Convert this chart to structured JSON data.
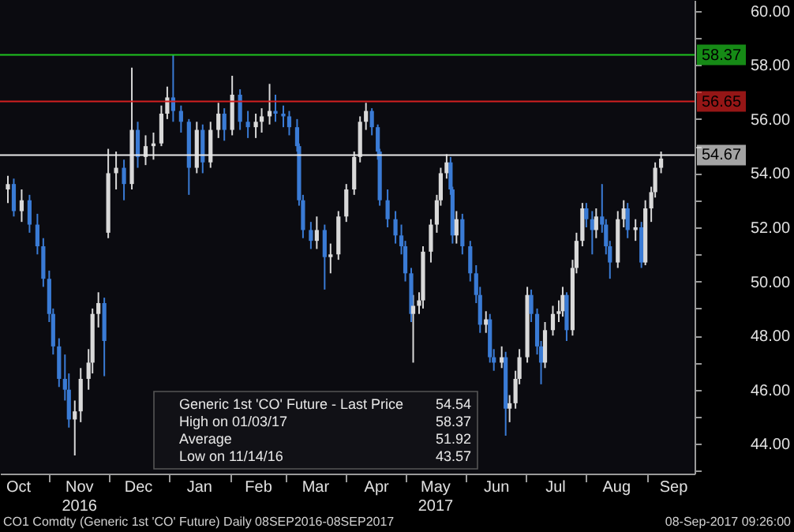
{
  "chart_data": {
    "type": "candlestick",
    "x": [
      "2016-10-11",
      "2016-10-14",
      "2016-10-18",
      "2016-10-22",
      "2016-10-26",
      "2016-10-29",
      "2016-11-01",
      "2016-11-03",
      "2016-11-06",
      "2016-11-09",
      "2016-11-11",
      "2016-11-14",
      "2016-11-17",
      "2016-11-21",
      "2016-11-23",
      "2016-11-26",
      "2016-11-29",
      "2016-12-01",
      "2016-12-05",
      "2016-12-09",
      "2016-12-13",
      "2016-12-16",
      "2016-12-20",
      "2016-12-24",
      "2016-12-28",
      "2016-12-31",
      "2017-01-03",
      "2017-01-07",
      "2017-01-11",
      "2017-01-15",
      "2017-01-18",
      "2017-01-22",
      "2017-01-26",
      "2017-01-29",
      "2017-02-02",
      "2017-02-06",
      "2017-02-10",
      "2017-02-14",
      "2017-02-17",
      "2017-02-21",
      "2017-02-24",
      "2017-02-28",
      "2017-03-03",
      "2017-03-07",
      "2017-03-08",
      "2017-03-10",
      "2017-03-14",
      "2017-03-17",
      "2017-03-21",
      "2017-03-24",
      "2017-03-28",
      "2017-04-01",
      "2017-04-05",
      "2017-04-08",
      "2017-04-11",
      "2017-04-14",
      "2017-04-17",
      "2017-04-18",
      "2017-04-22",
      "2017-04-26",
      "2017-04-29",
      "2017-05-01",
      "2017-05-04",
      "2017-05-05",
      "2017-05-08",
      "2017-05-10",
      "2017-05-14",
      "2017-05-17",
      "2017-05-19",
      "2017-05-22",
      "2017-05-24",
      "2017-05-25",
      "2017-05-27",
      "2017-05-30",
      "2017-06-03",
      "2017-06-06",
      "2017-06-08",
      "2017-06-11",
      "2017-06-13",
      "2017-06-15",
      "2017-06-19",
      "2017-06-21",
      "2017-06-23",
      "2017-06-26",
      "2017-06-28",
      "2017-07-02",
      "2017-07-04",
      "2017-07-07",
      "2017-07-09",
      "2017-07-11",
      "2017-07-15",
      "2017-07-18",
      "2017-07-20",
      "2017-07-22",
      "2017-07-25",
      "2017-07-27",
      "2017-07-30",
      "2017-08-01",
      "2017-08-04",
      "2017-08-06",
      "2017-08-09",
      "2017-08-11",
      "2017-08-13",
      "2017-08-17",
      "2017-08-20",
      "2017-08-22",
      "2017-08-26",
      "2017-08-29",
      "2017-08-31",
      "2017-09-03",
      "2017-09-05",
      "2017-09-08"
    ],
    "ohlc": [
      [
        53.4,
        53.9,
        52.9,
        53.6
      ],
      [
        53.6,
        53.8,
        52.4,
        52.6
      ],
      [
        52.6,
        53.4,
        52.2,
        53.0
      ],
      [
        53.0,
        53.2,
        51.8,
        52.1
      ],
      [
        52.1,
        52.5,
        51.0,
        51.3
      ],
      [
        51.3,
        51.6,
        49.8,
        50.1
      ],
      [
        50.1,
        50.4,
        48.5,
        48.8
      ],
      [
        48.8,
        49.0,
        47.3,
        47.6
      ],
      [
        47.6,
        47.9,
        46.1,
        46.4
      ],
      [
        46.4,
        47.3,
        45.6,
        46.0
      ],
      [
        46.0,
        46.6,
        44.6,
        44.9
      ],
      [
        44.9,
        45.6,
        43.57,
        45.2
      ],
      [
        45.2,
        46.8,
        44.8,
        46.4
      ],
      [
        46.4,
        47.5,
        46.0,
        47.0
      ],
      [
        47.0,
        49.0,
        46.6,
        48.8
      ],
      [
        48.8,
        49.6,
        48.3,
        49.2
      ],
      [
        49.2,
        49.4,
        46.5,
        47.8
      ],
      [
        51.8,
        54.9,
        51.6,
        54.0
      ],
      [
        54.0,
        54.8,
        53.4,
        54.2
      ],
      [
        54.2,
        54.5,
        53.0,
        53.6
      ],
      [
        53.6,
        57.9,
        53.4,
        55.6
      ],
      [
        55.6,
        55.9,
        54.2,
        54.6
      ],
      [
        54.6,
        55.4,
        54.3,
        55.0
      ],
      [
        55.0,
        55.5,
        54.5,
        55.1
      ],
      [
        55.1,
        56.5,
        55.0,
        56.2
      ],
      [
        56.2,
        57.2,
        56.0,
        56.8
      ],
      [
        56.8,
        58.37,
        55.9,
        56.3
      ],
      [
        56.3,
        56.5,
        55.5,
        55.9
      ],
      [
        55.9,
        56.0,
        53.2,
        54.2
      ],
      [
        54.2,
        55.9,
        54.0,
        55.6
      ],
      [
        55.6,
        55.8,
        54.0,
        54.4
      ],
      [
        54.4,
        55.9,
        54.2,
        55.6
      ],
      [
        55.6,
        56.6,
        55.3,
        56.2
      ],
      [
        56.2,
        56.4,
        55.2,
        55.6
      ],
      [
        55.6,
        57.6,
        55.4,
        56.9
      ],
      [
        56.9,
        57.1,
        55.6,
        55.9
      ],
      [
        55.9,
        56.3,
        55.3,
        55.7
      ],
      [
        55.7,
        56.2,
        55.3,
        55.9
      ],
      [
        55.9,
        56.4,
        55.5,
        56.1
      ],
      [
        56.1,
        57.3,
        55.8,
        56.3
      ],
      [
        56.3,
        56.9,
        55.9,
        56.2
      ],
      [
        56.2,
        56.5,
        55.7,
        56.1
      ],
      [
        56.1,
        56.3,
        55.4,
        55.7
      ],
      [
        55.7,
        56.0,
        54.8,
        55.0
      ],
      [
        55.0,
        55.1,
        52.8,
        53.0
      ],
      [
        53.0,
        53.2,
        51.6,
        51.9
      ],
      [
        51.9,
        52.2,
        51.2,
        51.5
      ],
      [
        51.5,
        52.4,
        51.2,
        51.9
      ],
      [
        51.9,
        52.1,
        49.7,
        50.9
      ],
      [
        50.9,
        51.4,
        50.3,
        51.0
      ],
      [
        51.0,
        52.6,
        50.8,
        52.4
      ],
      [
        52.4,
        53.6,
        52.2,
        53.4
      ],
      [
        53.4,
        54.8,
        53.2,
        54.6
      ],
      [
        54.6,
        56.1,
        54.4,
        55.9
      ],
      [
        55.9,
        56.6,
        55.6,
        56.3
      ],
      [
        56.3,
        56.4,
        55.4,
        55.7
      ],
      [
        55.7,
        55.8,
        54.5,
        54.8
      ],
      [
        54.8,
        54.9,
        52.8,
        53.0
      ],
      [
        53.0,
        53.4,
        52.0,
        52.3
      ],
      [
        52.3,
        52.6,
        51.4,
        51.7
      ],
      [
        51.7,
        52.1,
        51.0,
        51.3
      ],
      [
        51.3,
        51.5,
        50.0,
        50.3
      ],
      [
        50.3,
        50.5,
        48.5,
        48.8
      ],
      [
        48.8,
        49.5,
        47.0,
        49.1
      ],
      [
        49.1,
        49.6,
        48.8,
        49.3
      ],
      [
        49.3,
        51.3,
        49.0,
        51.1
      ],
      [
        51.1,
        52.3,
        50.7,
        52.1
      ],
      [
        52.1,
        53.2,
        51.8,
        53.0
      ],
      [
        53.0,
        54.2,
        52.8,
        54.0
      ],
      [
        54.0,
        54.7,
        53.8,
        54.4
      ],
      [
        54.4,
        54.6,
        53.2,
        53.4
      ],
      [
        53.4,
        53.5,
        51.4,
        51.7
      ],
      [
        51.7,
        52.6,
        51.4,
        52.3
      ],
      [
        52.3,
        52.5,
        51.0,
        51.3
      ],
      [
        51.3,
        51.5,
        50.0,
        50.3
      ],
      [
        50.3,
        50.6,
        49.2,
        49.5
      ],
      [
        49.5,
        49.8,
        48.1,
        48.4
      ],
      [
        48.4,
        48.9,
        48.1,
        48.6
      ],
      [
        48.6,
        48.8,
        47.0,
        47.2
      ],
      [
        47.2,
        47.5,
        46.7,
        47.0
      ],
      [
        47.0,
        47.6,
        46.8,
        47.2
      ],
      [
        47.2,
        47.4,
        44.3,
        45.3
      ],
      [
        45.3,
        45.8,
        44.8,
        45.5
      ],
      [
        45.5,
        46.7,
        45.3,
        46.4
      ],
      [
        46.4,
        47.5,
        46.2,
        47.2
      ],
      [
        47.2,
        49.8,
        47.0,
        49.5
      ],
      [
        49.5,
        49.7,
        48.5,
        48.8
      ],
      [
        48.8,
        49.0,
        47.3,
        47.6
      ],
      [
        47.6,
        47.8,
        46.2,
        47.0
      ],
      [
        47.0,
        48.5,
        46.8,
        48.2
      ],
      [
        48.2,
        49.1,
        48.0,
        48.8
      ],
      [
        48.8,
        49.3,
        48.5,
        48.9
      ],
      [
        48.9,
        49.8,
        48.7,
        49.5
      ],
      [
        49.5,
        49.6,
        47.8,
        48.2
      ],
      [
        48.2,
        50.8,
        48.0,
        50.5
      ],
      [
        50.5,
        51.8,
        50.3,
        51.5
      ],
      [
        51.5,
        52.9,
        51.3,
        52.7
      ],
      [
        52.7,
        52.9,
        52.0,
        52.3
      ],
      [
        52.3,
        52.6,
        51.0,
        51.9
      ],
      [
        51.9,
        52.7,
        51.6,
        52.4
      ],
      [
        52.4,
        53.6,
        51.8,
        52.1
      ],
      [
        52.1,
        52.3,
        51.0,
        51.3
      ],
      [
        51.3,
        51.5,
        50.1,
        50.7
      ],
      [
        50.7,
        52.6,
        50.5,
        52.3
      ],
      [
        52.3,
        53.0,
        52.0,
        52.7
      ],
      [
        52.7,
        52.9,
        51.6,
        51.9
      ],
      [
        51.9,
        52.3,
        51.5,
        52.0
      ],
      [
        52.0,
        52.2,
        50.5,
        50.7
      ],
      [
        50.7,
        53.0,
        50.6,
        52.7
      ],
      [
        52.7,
        53.5,
        52.2,
        53.3
      ],
      [
        53.3,
        54.4,
        53.1,
        54.2
      ],
      [
        54.2,
        54.8,
        54.0,
        54.54
      ]
    ],
    "colors": [
      "#d9d9d9",
      "#3a7bd5",
      "#d9d9d9",
      "#3a7bd5",
      "#3a7bd5",
      "#3a7bd5",
      "#3a7bd5",
      "#3a7bd5",
      "#3a7bd5",
      "#3a7bd5",
      "#3a7bd5",
      "#d9d9d9",
      "#d9d9d9",
      "#d9d9d9",
      "#d9d9d9",
      "#d9d9d9",
      "#3a7bd5",
      "#d9d9d9",
      "#d9d9d9",
      "#3a7bd5",
      "#d9d9d9",
      "#3a7bd5",
      "#d9d9d9",
      "#d9d9d9",
      "#d9d9d9",
      "#d9d9d9",
      "#3a7bd5",
      "#3a7bd5",
      "#3a7bd5",
      "#d9d9d9",
      "#3a7bd5",
      "#d9d9d9",
      "#d9d9d9",
      "#3a7bd5",
      "#d9d9d9",
      "#3a7bd5",
      "#3a7bd5",
      "#d9d9d9",
      "#d9d9d9",
      "#d9d9d9",
      "#3a7bd5",
      "#3a7bd5",
      "#3a7bd5",
      "#3a7bd5",
      "#3a7bd5",
      "#3a7bd5",
      "#3a7bd5",
      "#d9d9d9",
      "#3a7bd5",
      "#d9d9d9",
      "#d9d9d9",
      "#d9d9d9",
      "#d9d9d9",
      "#d9d9d9",
      "#d9d9d9",
      "#3a7bd5",
      "#3a7bd5",
      "#3a7bd5",
      "#3a7bd5",
      "#3a7bd5",
      "#3a7bd5",
      "#3a7bd5",
      "#3a7bd5",
      "#d9d9d9",
      "#d9d9d9",
      "#d9d9d9",
      "#d9d9d9",
      "#d9d9d9",
      "#d9d9d9",
      "#d9d9d9",
      "#3a7bd5",
      "#3a7bd5",
      "#d9d9d9",
      "#3a7bd5",
      "#3a7bd5",
      "#3a7bd5",
      "#3a7bd5",
      "#d9d9d9",
      "#3a7bd5",
      "#3a7bd5",
      "#d9d9d9",
      "#3a7bd5",
      "#d9d9d9",
      "#d9d9d9",
      "#d9d9d9",
      "#d9d9d9",
      "#3a7bd5",
      "#3a7bd5",
      "#3a7bd5",
      "#d9d9d9",
      "#d9d9d9",
      "#d9d9d9",
      "#d9d9d9",
      "#3a7bd5",
      "#d9d9d9",
      "#d9d9d9",
      "#d9d9d9",
      "#3a7bd5",
      "#3a7bd5",
      "#d9d9d9",
      "#3a7bd5",
      "#3a7bd5",
      "#3a7bd5",
      "#d9d9d9",
      "#d9d9d9",
      "#3a7bd5",
      "#d9d9d9",
      "#3a7bd5",
      "#d9d9d9",
      "#d9d9d9",
      "#d9d9d9",
      "#d9d9d9"
    ],
    "xlim": [
      "2016-10-11",
      "2017-09-21"
    ],
    "xticks": [
      {
        "value": "2016-11-01",
        "label": null
      },
      {
        "value": "2016-12-01",
        "label": null
      },
      {
        "value": "2017-01-01",
        "label": null
      },
      {
        "value": "2017-02-01",
        "label": null
      },
      {
        "value": "2017-03-01",
        "label": null
      },
      {
        "value": "2017-04-01",
        "label": null
      },
      {
        "value": "2017-05-01",
        "label": null
      },
      {
        "value": "2017-06-01",
        "label": null
      },
      {
        "value": "2017-07-01",
        "label": null
      },
      {
        "value": "2017-08-01",
        "label": null
      },
      {
        "value": "2017-09-01",
        "label": null
      },
      {
        "value": "2016-10-16",
        "label": "Oct"
      },
      {
        "value": "2016-11-16",
        "label": "Nov\n2016"
      },
      {
        "value": "2016-12-16",
        "label": "Dec"
      },
      {
        "value": "2017-01-16",
        "label": "Jan"
      },
      {
        "value": "2017-02-15",
        "label": "Feb"
      },
      {
        "value": "2017-03-16",
        "label": "Mar"
      },
      {
        "value": "2017-04-16",
        "label": "Apr"
      },
      {
        "value": "2017-05-16",
        "label": "May\n2017"
      },
      {
        "value": "2017-06-16",
        "label": "Jun"
      },
      {
        "value": "2017-07-16",
        "label": "Jul"
      },
      {
        "value": "2017-08-16",
        "label": "Aug"
      },
      {
        "value": "2017-09-14",
        "label": "Sep"
      }
    ],
    "ylim": [
      42.9,
      60.4
    ],
    "yticks": [
      {
        "value": 44,
        "label": "44.00"
      },
      {
        "value": 46,
        "label": "46.00"
      },
      {
        "value": 48,
        "label": "48.00"
      },
      {
        "value": 50,
        "label": "50.00"
      },
      {
        "value": 52,
        "label": "52.00"
      },
      {
        "value": 54,
        "label": "54.00"
      },
      {
        "value": 56,
        "label": "56.00"
      },
      {
        "value": 58,
        "label": "58.00"
      },
      {
        "value": 60,
        "label": "60.00"
      },
      {
        "value": 43,
        "label": null
      },
      {
        "value": 45,
        "label": null
      },
      {
        "value": 47,
        "label": null
      },
      {
        "value": 49,
        "label": null
      },
      {
        "value": 51,
        "label": null
      },
      {
        "value": 53,
        "label": null
      },
      {
        "value": 55,
        "label": null
      },
      {
        "value": 57,
        "label": null
      },
      {
        "value": 59,
        "label": null
      }
    ],
    "ref_lines": [
      {
        "axis": "y",
        "value": 58.37,
        "label": "58.37",
        "color": "#1fc41f"
      },
      {
        "axis": "y",
        "value": 56.65,
        "label": "56.65",
        "color": "#d42020"
      },
      {
        "axis": "y",
        "value": 54.67,
        "label": "54.67",
        "color": "#e8e8e8"
      }
    ],
    "grid": false,
    "annotations": [
      "Generic 1st 'CO' Future - Last Price",
      "54.54",
      "High on 01/03/17",
      "58.37",
      "Average",
      "51.92",
      "Low on 11/14/16",
      "43.57",
      "CO1 Comdty (Generic 1st 'CO' Future)  Daily 08SEP2016-08SEP2017",
      "08-Sep-2017 09:26:00"
    ]
  }
}
